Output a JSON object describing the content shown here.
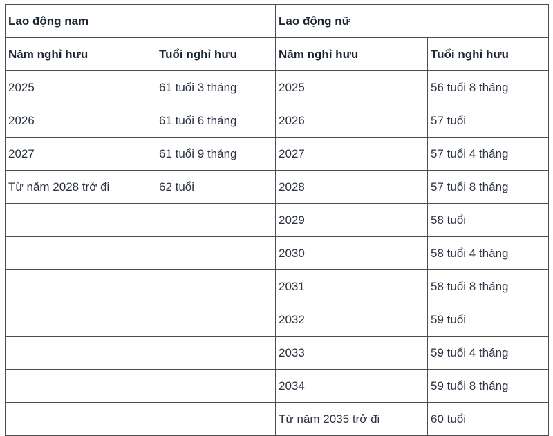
{
  "table": {
    "sections": [
      {
        "title": "Lao động nam",
        "col_headers": [
          "Năm nghỉ hưu",
          "Tuổi nghỉ hưu"
        ],
        "rows": [
          [
            "2025",
            "61 tuổi 3 tháng"
          ],
          [
            "2026",
            "61 tuổi 6 tháng"
          ],
          [
            "2027",
            "61 tuổi 9 tháng"
          ],
          [
            "Từ năm 2028 trở đi",
            "62 tuổi"
          ],
          [
            "",
            ""
          ],
          [
            "",
            ""
          ],
          [
            "",
            ""
          ],
          [
            "",
            ""
          ],
          [
            "",
            ""
          ],
          [
            "",
            ""
          ],
          [
            "",
            ""
          ]
        ]
      },
      {
        "title": "Lao động nữ",
        "col_headers": [
          "Năm nghỉ hưu",
          "Tuổi nghỉ hưu"
        ],
        "rows": [
          [
            "2025",
            "56 tuổi 8 tháng"
          ],
          [
            "2026",
            "57 tuổi"
          ],
          [
            "2027",
            "57 tuổi 4 tháng"
          ],
          [
            "2028",
            "57 tuổi 8 tháng"
          ],
          [
            "2029",
            "58 tuổi"
          ],
          [
            "2030",
            "58 tuổi 4 tháng"
          ],
          [
            "2031",
            "58 tuổi 8 tháng"
          ],
          [
            "2032",
            "59 tuổi"
          ],
          [
            "2033",
            "59 tuổi 4 tháng"
          ],
          [
            "2034",
            "59 tuổi 8 tháng"
          ],
          [
            "Từ năm 2035 trở đi",
            "60 tuổi"
          ]
        ]
      }
    ]
  },
  "colors": {
    "background": "#ffffff",
    "border": "#4d4d4d",
    "header_text": "#1c2534",
    "body_text": "#2b3342"
  }
}
